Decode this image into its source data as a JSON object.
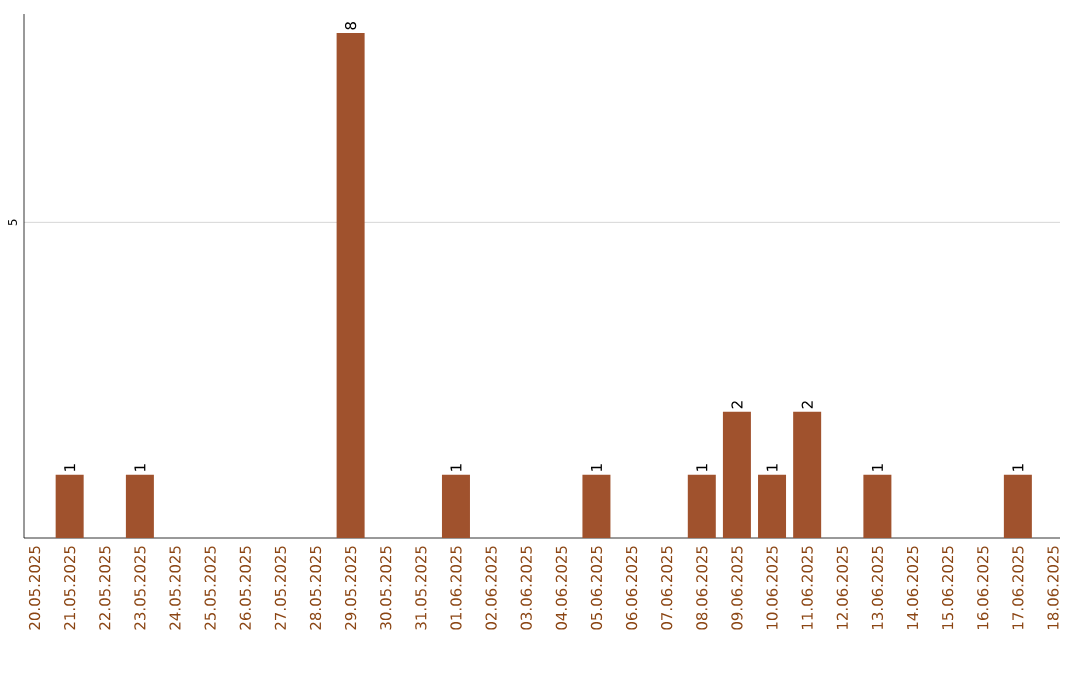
{
  "chart_data": {
    "type": "bar",
    "categories": [
      "20.05.2025",
      "21.05.2025",
      "22.05.2025",
      "23.05.2025",
      "24.05.2025",
      "25.05.2025",
      "26.05.2025",
      "27.05.2025",
      "28.05.2025",
      "29.05.2025",
      "30.05.2025",
      "31.05.2025",
      "01.06.2025",
      "02.06.2025",
      "03.06.2025",
      "04.06.2025",
      "05.06.2025",
      "06.06.2025",
      "07.06.2025",
      "08.06.2025",
      "09.06.2025",
      "10.06.2025",
      "11.06.2025",
      "12.06.2025",
      "13.06.2025",
      "14.06.2025",
      "15.06.2025",
      "16.06.2025",
      "17.06.2025",
      "18.06.2025"
    ],
    "values": [
      null,
      1,
      null,
      1,
      null,
      null,
      null,
      null,
      null,
      8,
      null,
      null,
      1,
      null,
      null,
      null,
      1,
      null,
      null,
      1,
      2,
      1,
      2,
      null,
      1,
      null,
      null,
      null,
      1,
      null
    ],
    "color": "#a0522d",
    "ylim": [
      0,
      8.3
    ],
    "yticks": [
      5
    ],
    "grid": "y",
    "data_labels": true
  }
}
